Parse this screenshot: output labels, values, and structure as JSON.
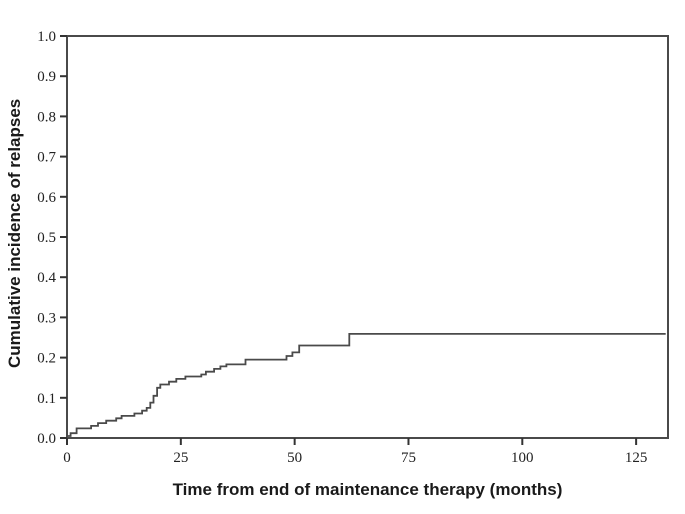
{
  "chart_data": {
    "type": "line",
    "subtype": "step-cumulative-incidence",
    "title": "",
    "xlabel": "Time from end of maintenance therapy (months)",
    "ylabel": "Cumulative incidence of relapses",
    "xlim": [
      0,
      132
    ],
    "ylim": [
      0.0,
      1.0
    ],
    "x_ticks": [
      0,
      25,
      50,
      75,
      100,
      125
    ],
    "y_ticks": [
      "0.0",
      "0.1",
      "0.2",
      "0.3",
      "0.4",
      "0.5",
      "0.6",
      "0.7",
      "0.8",
      "0.9",
      "1.0"
    ],
    "grid": false,
    "legend": "none",
    "frame": "full-box",
    "line_color": "#4a4a4a",
    "frame_color": "#4a4a4a",
    "tick_color": "#333333",
    "background_color": "#ffffff",
    "series": [
      {
        "name": "Cumulative incidence of relapses",
        "steps": [
          [
            0,
            0.005
          ],
          [
            0.8,
            0.012
          ],
          [
            2.1,
            0.024
          ],
          [
            5.3,
            0.03
          ],
          [
            6.8,
            0.037
          ],
          [
            8.6,
            0.043
          ],
          [
            10.8,
            0.049
          ],
          [
            12.0,
            0.055
          ],
          [
            14.8,
            0.061
          ],
          [
            16.5,
            0.068
          ],
          [
            17.5,
            0.075
          ],
          [
            18.3,
            0.088
          ],
          [
            19.0,
            0.105
          ],
          [
            19.8,
            0.125
          ],
          [
            20.5,
            0.133
          ],
          [
            22.4,
            0.14
          ],
          [
            24.0,
            0.147
          ],
          [
            26.0,
            0.153
          ],
          [
            29.5,
            0.158
          ],
          [
            30.5,
            0.165
          ],
          [
            32.3,
            0.172
          ],
          [
            33.7,
            0.178
          ],
          [
            35.0,
            0.183
          ],
          [
            39.2,
            0.195
          ],
          [
            48.2,
            0.204
          ],
          [
            49.5,
            0.213
          ],
          [
            51.0,
            0.23
          ],
          [
            62.0,
            0.259
          ]
        ],
        "end_time": 131.5,
        "final_value": 0.26
      }
    ]
  }
}
